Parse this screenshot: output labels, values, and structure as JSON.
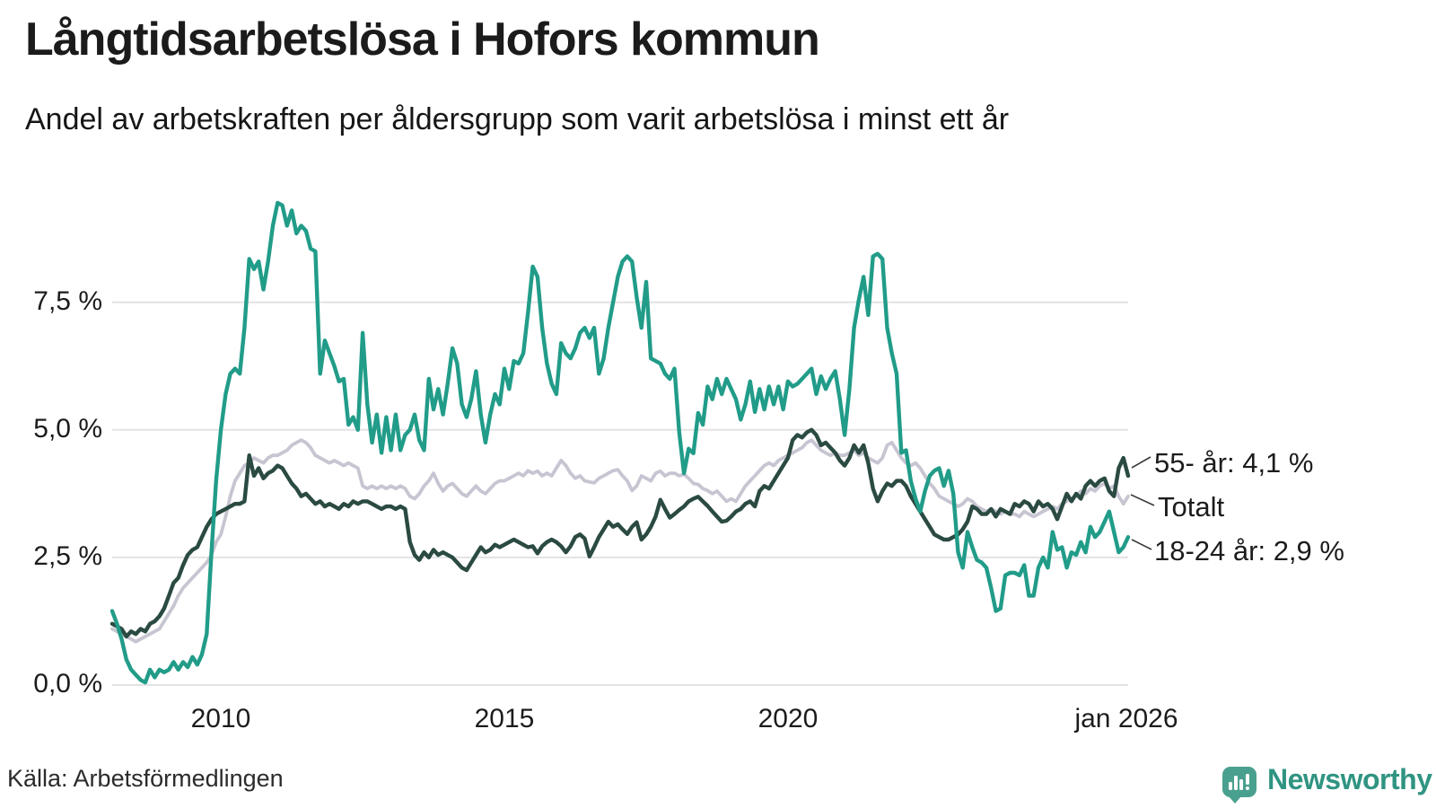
{
  "header": {
    "title": "Långtidsarbetslösa i Hofors kommun",
    "subtitle": "Andel av arbetskraften per åldersgrupp som varit arbetslösa i minst ett år"
  },
  "axis": {
    "y_ticks": [
      "7,5 %",
      "5,0 %",
      "2,5 %",
      "0,0 %"
    ],
    "x_ticks": [
      "2010",
      "2015",
      "2020",
      "jan 2026"
    ]
  },
  "footer": {
    "source": "Källa: Arbetsförmedlingen",
    "brand": "Newsworthy"
  },
  "colors": {
    "series_18_24": "#219c89",
    "series_55": "#2a4a42",
    "series_total": "#c7c5d1",
    "grid": "#e3e3e6",
    "logo_icon": "#4aa08e",
    "logo_text": "#2f9481"
  },
  "chart_data": {
    "type": "line",
    "title": "Långtidsarbetslösa i Hofors kommun",
    "subtitle": "Andel av arbetskraften per åldersgrupp som varit arbetslösa i minst ett år",
    "x_start": "2008-02",
    "x_end": "2026-01",
    "interval": "month",
    "ylabel": "",
    "xlabel": "",
    "ylim": [
      0,
      9.7
    ],
    "y_gridlines": [
      0,
      2.5,
      5,
      7.5
    ],
    "grid": true,
    "legend_position": "end-of-line-labels",
    "x_tick_positions": [
      23,
      83,
      143,
      215
    ],
    "series": [
      {
        "id": "totalt",
        "name": "Totalt",
        "end_label": "Totalt",
        "color": "#c7c5d1",
        "values": [
          1.1,
          1.05,
          1.0,
          0.95,
          0.9,
          0.85,
          0.9,
          0.95,
          1.0,
          1.05,
          1.1,
          1.25,
          1.4,
          1.55,
          1.75,
          1.9,
          2.0,
          2.1,
          2.2,
          2.3,
          2.4,
          2.55,
          2.8,
          2.95,
          3.3,
          3.7,
          4.0,
          4.15,
          4.3,
          4.35,
          4.45,
          4.4,
          4.35,
          4.45,
          4.5,
          4.5,
          4.55,
          4.6,
          4.7,
          4.75,
          4.8,
          4.75,
          4.65,
          4.5,
          4.45,
          4.4,
          4.35,
          4.4,
          4.35,
          4.3,
          4.35,
          4.3,
          4.25,
          3.9,
          3.85,
          3.9,
          3.85,
          3.9,
          3.85,
          3.9,
          3.85,
          3.9,
          3.85,
          3.7,
          3.65,
          3.75,
          3.9,
          4.0,
          4.15,
          3.95,
          3.8,
          3.9,
          3.95,
          3.85,
          3.75,
          3.7,
          3.8,
          3.9,
          3.8,
          3.75,
          3.85,
          3.95,
          4.0,
          4.0,
          4.05,
          4.1,
          4.15,
          4.1,
          4.2,
          4.15,
          4.19,
          4.1,
          4.15,
          4.1,
          4.25,
          4.4,
          4.3,
          4.15,
          4.05,
          4.1,
          4.0,
          3.98,
          3.96,
          4.05,
          4.1,
          4.15,
          4.2,
          4.22,
          4.1,
          4.0,
          3.81,
          3.9,
          4.1,
          4.05,
          4.0,
          4.15,
          4.19,
          4.1,
          4.15,
          4.15,
          4.1,
          4.13,
          4.05,
          3.95,
          3.93,
          3.85,
          3.81,
          3.75,
          3.8,
          3.7,
          3.6,
          3.65,
          3.6,
          3.75,
          3.9,
          4.0,
          4.1,
          4.2,
          4.3,
          4.35,
          4.3,
          4.4,
          4.45,
          4.5,
          4.55,
          4.6,
          4.65,
          4.75,
          4.8,
          4.7,
          4.6,
          4.55,
          4.5,
          4.55,
          4.5,
          4.5,
          4.55,
          4.6,
          4.5,
          4.55,
          4.45,
          4.4,
          4.35,
          4.45,
          4.7,
          4.75,
          4.6,
          4.45,
          4.35,
          4.3,
          4.35,
          4.25,
          4.1,
          3.95,
          3.85,
          3.7,
          3.65,
          3.6,
          3.55,
          3.5,
          3.55,
          3.65,
          3.6,
          3.5,
          3.45,
          3.4,
          3.45,
          3.4,
          3.35,
          3.4,
          3.35,
          3.35,
          3.3,
          3.4,
          3.35,
          3.3,
          3.35,
          3.4,
          3.45,
          3.5,
          3.45,
          3.55,
          3.6,
          3.65,
          3.7,
          3.8,
          3.75,
          3.85,
          3.8,
          3.9,
          3.95,
          3.85,
          3.9,
          3.7,
          3.55,
          3.7
        ]
      },
      {
        "id": "55",
        "name": "55- år",
        "end_label": "55- år: 4,1 %",
        "end_value": 4.1,
        "color": "#2a4a42",
        "values": [
          1.2,
          1.15,
          1.1,
          0.95,
          1.05,
          1.0,
          1.1,
          1.05,
          1.2,
          1.25,
          1.35,
          1.5,
          1.75,
          2.0,
          2.1,
          2.35,
          2.55,
          2.65,
          2.7,
          2.9,
          3.1,
          3.25,
          3.35,
          3.4,
          3.45,
          3.5,
          3.55,
          3.55,
          3.6,
          4.5,
          4.1,
          4.25,
          4.05,
          4.15,
          4.2,
          4.3,
          4.25,
          4.1,
          3.95,
          3.85,
          3.7,
          3.75,
          3.65,
          3.55,
          3.6,
          3.5,
          3.55,
          3.5,
          3.45,
          3.55,
          3.5,
          3.6,
          3.55,
          3.6,
          3.6,
          3.55,
          3.5,
          3.45,
          3.5,
          3.5,
          3.45,
          3.5,
          3.45,
          2.8,
          2.55,
          2.45,
          2.6,
          2.5,
          2.65,
          2.55,
          2.6,
          2.55,
          2.5,
          2.4,
          2.3,
          2.25,
          2.4,
          2.55,
          2.7,
          2.6,
          2.65,
          2.75,
          2.7,
          2.75,
          2.8,
          2.85,
          2.8,
          2.75,
          2.7,
          2.72,
          2.58,
          2.72,
          2.8,
          2.85,
          2.8,
          2.72,
          2.6,
          2.72,
          2.9,
          2.95,
          2.87,
          2.52,
          2.7,
          2.9,
          3.05,
          3.2,
          3.1,
          3.15,
          3.05,
          2.96,
          3.1,
          3.19,
          2.85,
          2.95,
          3.1,
          3.3,
          3.63,
          3.45,
          3.28,
          3.35,
          3.43,
          3.5,
          3.6,
          3.65,
          3.69,
          3.6,
          3.51,
          3.4,
          3.3,
          3.2,
          3.22,
          3.3,
          3.4,
          3.45,
          3.55,
          3.6,
          3.5,
          3.8,
          3.9,
          3.85,
          4.0,
          4.15,
          4.3,
          4.45,
          4.8,
          4.9,
          4.85,
          4.95,
          5.0,
          4.9,
          4.7,
          4.75,
          4.65,
          4.55,
          4.4,
          4.3,
          4.45,
          4.7,
          4.55,
          4.7,
          4.35,
          3.85,
          3.6,
          3.8,
          3.95,
          3.9,
          4.0,
          4.0,
          3.9,
          3.7,
          3.55,
          3.4,
          3.25,
          3.1,
          2.95,
          2.9,
          2.85,
          2.85,
          2.9,
          2.95,
          3.05,
          3.2,
          3.5,
          3.45,
          3.35,
          3.35,
          3.45,
          3.3,
          3.45,
          3.4,
          3.35,
          3.55,
          3.5,
          3.6,
          3.55,
          3.4,
          3.6,
          3.5,
          3.55,
          3.45,
          3.25,
          3.5,
          3.75,
          3.6,
          3.75,
          3.65,
          3.9,
          4.0,
          3.9,
          4.0,
          4.05,
          3.8,
          3.7,
          4.25,
          4.45,
          4.1
        ]
      },
      {
        "id": "18-24",
        "name": "18-24 år",
        "end_label": "18-24 år: 2,9 %",
        "end_value": 2.9,
        "color": "#219c89",
        "values": [
          1.45,
          1.2,
          0.9,
          0.5,
          0.3,
          0.2,
          0.1,
          0.05,
          0.3,
          0.15,
          0.3,
          0.25,
          0.3,
          0.45,
          0.3,
          0.45,
          0.35,
          0.55,
          0.4,
          0.6,
          1.0,
          2.6,
          4.0,
          5.0,
          5.7,
          6.1,
          6.2,
          6.1,
          7.0,
          8.35,
          8.15,
          8.3,
          7.75,
          8.3,
          9.0,
          9.45,
          9.4,
          9.0,
          9.3,
          8.85,
          9.0,
          8.9,
          8.55,
          8.5,
          6.1,
          6.75,
          6.5,
          6.25,
          5.95,
          6.0,
          5.1,
          5.25,
          5.0,
          6.9,
          5.5,
          4.75,
          5.3,
          4.55,
          5.25,
          4.6,
          5.3,
          4.6,
          4.9,
          5.0,
          5.3,
          4.8,
          4.6,
          6.0,
          5.4,
          5.8,
          5.3,
          5.9,
          6.6,
          6.3,
          5.5,
          5.25,
          5.6,
          6.15,
          5.3,
          4.75,
          5.3,
          5.7,
          5.5,
          6.2,
          5.8,
          6.35,
          6.3,
          6.5,
          7.3,
          8.2,
          8.0,
          7.0,
          6.3,
          5.9,
          5.7,
          6.7,
          6.5,
          6.4,
          6.6,
          6.9,
          7.0,
          6.8,
          7.0,
          6.1,
          6.4,
          7.0,
          7.5,
          8.0,
          8.3,
          8.4,
          8.3,
          7.6,
          7.0,
          7.9,
          6.4,
          6.35,
          6.3,
          6.1,
          6.0,
          6.2,
          4.95,
          4.15,
          4.63,
          4.54,
          5.33,
          5.1,
          5.85,
          5.6,
          6.0,
          5.7,
          6.0,
          5.8,
          5.6,
          5.2,
          5.5,
          5.95,
          5.35,
          5.8,
          5.4,
          5.85,
          5.5,
          5.85,
          5.4,
          5.95,
          5.85,
          5.9,
          6.0,
          6.1,
          6.2,
          5.7,
          6.05,
          5.8,
          6.0,
          6.15,
          5.6,
          4.9,
          5.8,
          7.0,
          7.55,
          8.0,
          7.25,
          8.4,
          8.45,
          8.35,
          7.0,
          6.5,
          6.1,
          4.55,
          4.6,
          4.0,
          3.65,
          3.4,
          3.8,
          4.1,
          4.2,
          4.25,
          3.9,
          4.2,
          3.75,
          2.6,
          2.3,
          3.0,
          2.7,
          2.45,
          2.4,
          2.3,
          1.9,
          1.45,
          1.5,
          2.15,
          2.2,
          2.2,
          2.15,
          2.35,
          1.75,
          1.75,
          2.3,
          2.5,
          2.3,
          3.0,
          2.65,
          2.7,
          2.3,
          2.6,
          2.55,
          2.8,
          2.6,
          3.1,
          2.9,
          3.0,
          3.2,
          3.4,
          3.0,
          2.6,
          2.7,
          2.9
        ]
      }
    ]
  }
}
